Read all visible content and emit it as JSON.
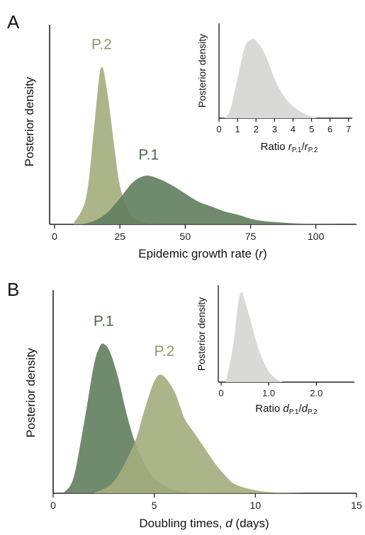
{
  "panels": [
    {
      "letter": "A",
      "main": {
        "type": "area",
        "ylabel": "Posterior density",
        "xlabel_parts": [
          "Epidemic growth rate (",
          "r",
          ")"
        ],
        "xlim": [
          0,
          115
        ],
        "ylim": [
          0,
          1.0
        ],
        "xticks": [
          0,
          25,
          50,
          75,
          100
        ],
        "xtick_labels": [
          "0",
          "25",
          "50",
          "75",
          "100"
        ],
        "series": [
          {
            "name": "P.2",
            "color": "#a3ad7c",
            "opacity": 0.9,
            "x": [
              7,
              12,
              15,
              17,
              18,
              19,
              21,
              23,
              25,
              28,
              32,
              40
            ],
            "y": [
              0,
              0.16,
              0.58,
              0.9,
              0.97,
              0.93,
              0.72,
              0.46,
              0.24,
              0.09,
              0.02,
              0
            ]
          },
          {
            "name": "P.1",
            "color": "#617d5d",
            "opacity": 0.9,
            "x": [
              10,
              15,
              20,
              25,
              30,
              35,
              40,
              45,
              50,
              55,
              60,
              65,
              70,
              75,
              80,
              90,
              100,
              110
            ],
            "y": [
              0,
              0.02,
              0.07,
              0.16,
              0.26,
              0.3,
              0.28,
              0.24,
              0.19,
              0.14,
              0.11,
              0.08,
              0.06,
              0.035,
              0.02,
              0.008,
              0.002,
              0
            ]
          }
        ],
        "series_labels": [
          {
            "text": "P.2",
            "x": 18,
            "y": 1.08,
            "color": "#8f9b68"
          },
          {
            "text": "P.1",
            "x": 36,
            "y": 0.4,
            "color": "#4e6a4b"
          }
        ]
      },
      "inset": {
        "type": "area",
        "ylabel": "Posterior density",
        "xlabel_main": "Ratio ",
        "xlabel_parts": [
          {
            "t": "r",
            "italic": true,
            "sub": false
          },
          {
            "t": "P.1",
            "italic": false,
            "sub": true
          },
          {
            "t": "/",
            "italic": false,
            "sub": false
          },
          {
            "t": "r",
            "italic": true,
            "sub": false
          },
          {
            "t": "P.2",
            "italic": false,
            "sub": true
          }
        ],
        "xlim": [
          0,
          7.2
        ],
        "ylim": [
          0,
          1.0
        ],
        "xticks": [
          0,
          1,
          2,
          3,
          4,
          5,
          6,
          7
        ],
        "xtick_labels": [
          "0",
          "1",
          "2",
          "3",
          "4",
          "5",
          "6",
          "7"
        ],
        "series": [
          {
            "name": "",
            "color": "#d9d9d7",
            "opacity": 1,
            "x": [
              0.3,
              0.6,
              1.0,
              1.4,
              1.8,
              2.1,
              2.5,
              3.0,
              3.5,
              4.0,
              4.5,
              5.0,
              5.3
            ],
            "y": [
              0,
              0.1,
              0.5,
              0.9,
              1.0,
              0.95,
              0.8,
              0.5,
              0.28,
              0.15,
              0.07,
              0.02,
              0
            ]
          }
        ]
      }
    },
    {
      "letter": "B",
      "main": {
        "type": "area",
        "ylabel": "Posterior density",
        "xlabel_parts": [
          "Doubling times, ",
          "d",
          " (days)"
        ],
        "xlim": [
          0,
          15
        ],
        "ylim": [
          0,
          1.0
        ],
        "xticks": [
          0,
          5,
          10,
          15
        ],
        "xtick_labels": [
          "0",
          "5",
          "10",
          "15"
        ],
        "series": [
          {
            "name": "P.1",
            "color": "#617d5d",
            "opacity": 0.9,
            "x": [
              0.5,
              1.0,
              1.5,
              2.0,
              2.3,
              2.5,
              2.8,
              3.2,
              3.6,
              4.0,
              4.5,
              5.0,
              5.5,
              6.0,
              7.0,
              8.0
            ],
            "y": [
              0,
              0.1,
              0.45,
              0.85,
              0.98,
              1.0,
              0.95,
              0.78,
              0.55,
              0.36,
              0.2,
              0.1,
              0.05,
              0.02,
              0.005,
              0
            ]
          },
          {
            "name": "P.2",
            "color": "#a3ad7c",
            "opacity": 0.9,
            "x": [
              2.0,
              3.0,
              4.0,
              4.5,
              5.0,
              5.4,
              6.0,
              6.5,
              7.0,
              7.5,
              8.0,
              8.5,
              9.0,
              10.0,
              11.0,
              12.5
            ],
            "y": [
              0,
              0.08,
              0.33,
              0.55,
              0.75,
              0.79,
              0.68,
              0.5,
              0.4,
              0.3,
              0.2,
              0.12,
              0.06,
              0.02,
              0.005,
              0
            ]
          }
        ],
        "series_labels": [
          {
            "text": "P.1",
            "x": 2.5,
            "y": 1.12,
            "color": "#4e6a4b"
          },
          {
            "text": "P.2",
            "x": 5.5,
            "y": 0.92,
            "color": "#8f9b68"
          }
        ]
      },
      "inset": {
        "type": "area",
        "ylabel": "Posterior density",
        "xlabel_main": "Ratio ",
        "xlabel_parts": [
          {
            "t": "d",
            "italic": true,
            "sub": false
          },
          {
            "t": "P.1",
            "italic": false,
            "sub": true
          },
          {
            "t": "/",
            "italic": false,
            "sub": false
          },
          {
            "t": "d",
            "italic": true,
            "sub": false
          },
          {
            "t": "P.2",
            "italic": false,
            "sub": true
          }
        ],
        "xlim": [
          0,
          2.8
        ],
        "ylim": [
          0,
          1.0
        ],
        "xticks": [
          0,
          1,
          2
        ],
        "xtick_labels": [
          "0",
          "1.0",
          "2.0"
        ],
        "series": [
          {
            "name": "",
            "color": "#d9d9d7",
            "opacity": 1,
            "x": [
              0.1,
              0.25,
              0.35,
              0.42,
              0.5,
              0.6,
              0.7,
              0.8,
              0.9,
              1.0,
              1.1,
              1.2,
              1.3
            ],
            "y": [
              0,
              0.4,
              0.85,
              1.0,
              0.9,
              0.72,
              0.52,
              0.35,
              0.22,
              0.12,
              0.06,
              0.02,
              0
            ]
          }
        ]
      }
    }
  ]
}
